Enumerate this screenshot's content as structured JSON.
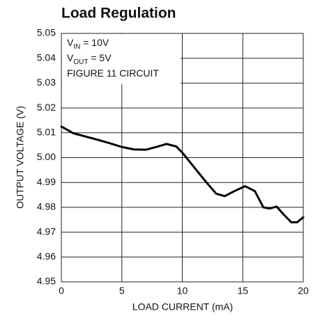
{
  "chart_data": {
    "type": "line",
    "title": "Load Regulation",
    "x_label": "LOAD CURRENT (mA)",
    "y_label": "OUTPUT VOLTAGE (V)",
    "annotations": [
      [
        "V",
        "IN",
        " = 10V"
      ],
      [
        "V",
        "OUT",
        " = 5V"
      ],
      [
        "FIGURE 11 CIRCUIT"
      ]
    ],
    "xlim": [
      0,
      20
    ],
    "xticks": [
      0,
      5,
      10,
      15,
      20
    ],
    "ylim": [
      4.95,
      5.05
    ],
    "yticks": [
      4.95,
      4.96,
      4.97,
      4.98,
      4.99,
      {
        "value": 5,
        "label": "5.00"
      },
      5.01,
      5.02,
      5.03,
      5.04,
      5.05
    ],
    "grid": true,
    "series": [
      {
        "color": "#000000",
        "x": [
          0,
          1,
          2,
          3,
          4,
          5,
          6,
          7,
          8,
          8.7,
          9.5,
          10,
          11,
          12,
          12.8,
          13.5,
          14.3,
          15.2,
          16,
          16.7,
          17.2,
          17.8,
          18.4,
          19,
          19.5,
          20
        ],
        "values": [
          5.0125,
          5.0098,
          5.0085,
          5.0072,
          5.0058,
          5.0043,
          5.0033,
          5.0032,
          5.0045,
          5.0055,
          5.0045,
          5.002,
          4.996,
          4.99,
          4.9855,
          4.9845,
          4.9865,
          4.9885,
          4.9865,
          4.98,
          4.9795,
          4.9803,
          4.977,
          4.974,
          4.974,
          4.976
        ]
      }
    ]
  }
}
